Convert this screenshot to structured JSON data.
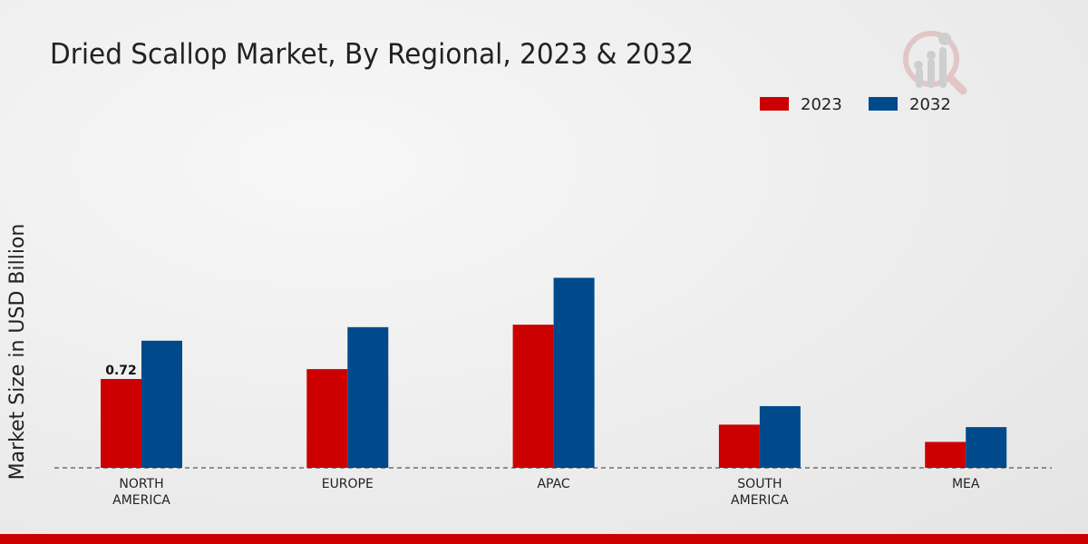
{
  "chart_data": {
    "type": "bar",
    "title": "Dried Scallop Market, By Regional, 2023 & 2032",
    "xlabel": "",
    "ylabel": "Market Size in USD Billion",
    "categories": [
      "NORTH\nAMERICA",
      "EUROPE",
      "APAC",
      "SOUTH\nAMERICA",
      "MEA"
    ],
    "series": [
      {
        "name": "2023",
        "color": "#cc0000",
        "values": [
          0.72,
          0.8,
          1.16,
          0.35,
          0.21
        ]
      },
      {
        "name": "2032",
        "color": "#004a8c",
        "values": [
          1.03,
          1.14,
          1.54,
          0.5,
          0.33
        ]
      }
    ],
    "data_labels": [
      {
        "series": 0,
        "index": 0,
        "text": "0.72"
      }
    ],
    "ylim": [
      0,
      2.0
    ],
    "grid": false,
    "legend_position": "top-right"
  }
}
